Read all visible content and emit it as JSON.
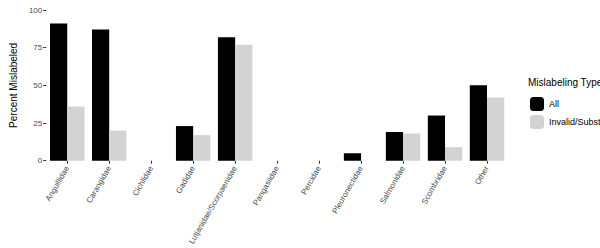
{
  "chart_data": {
    "type": "bar",
    "y_label": "Percent Mislabeled",
    "legend_title": "Mislabeling Type",
    "categories": [
      "Anguillidae",
      "Carangidae",
      "Cichlidae",
      "Gadidae",
      "Lutjanidae/Scorpaenidae",
      "Pangasiidae",
      "Percidae",
      "Pleuronectidae",
      "Salmonidae",
      "Scombridae",
      "Other"
    ],
    "series": [
      {
        "name": "All",
        "color": "#000000",
        "values": [
          91,
          87,
          0,
          23,
          82,
          0,
          0,
          5,
          19,
          30,
          50
        ]
      },
      {
        "name": "Invalid/Substitution",
        "color": "#d3d3d3",
        "values": [
          36,
          20,
          0,
          17,
          77,
          0,
          0,
          0,
          18,
          9,
          42
        ]
      }
    ],
    "ylim": [
      0,
      100
    ],
    "yticks": [
      0,
      25,
      50,
      75,
      100
    ],
    "grid": false,
    "legend": "right"
  }
}
